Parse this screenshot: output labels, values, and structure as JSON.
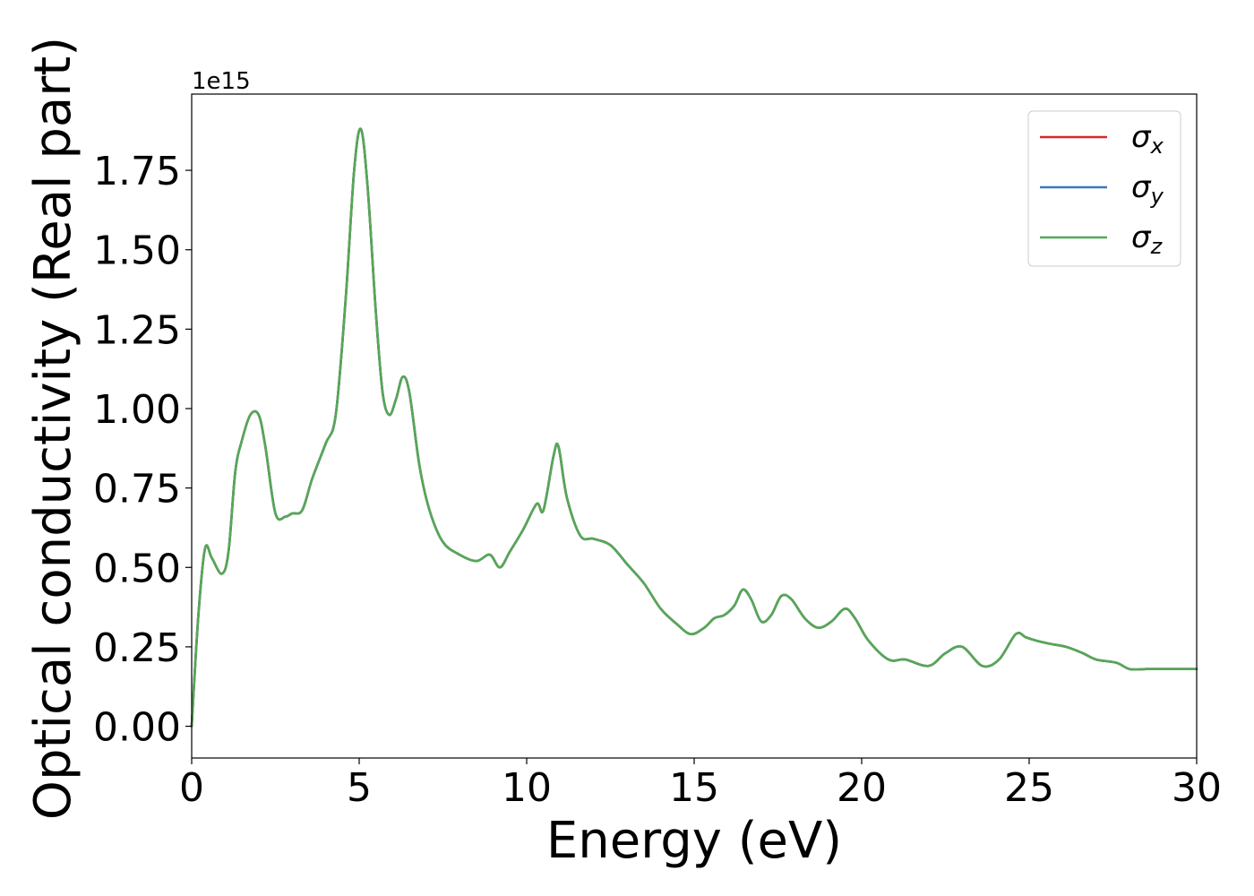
{
  "chart_data": {
    "type": "line",
    "xlabel": "Energy (eV)",
    "ylabel": "Optical conductivity (Real part)",
    "y_offset_label": "1e15",
    "xlim": [
      0,
      30
    ],
    "ylim": [
      -0.1,
      1.99
    ],
    "x_ticks": [
      0,
      5,
      10,
      15,
      20,
      25,
      30
    ],
    "x_tick_labels": [
      "0",
      "5",
      "10",
      "15",
      "20",
      "25",
      "30"
    ],
    "y_ticks": [
      0.0,
      0.25,
      0.5,
      0.75,
      1.0,
      1.25,
      1.5,
      1.75
    ],
    "y_tick_labels": [
      "0.00",
      "0.25",
      "0.50",
      "0.75",
      "1.00",
      "1.25",
      "1.50",
      "1.75"
    ],
    "grid": false,
    "legend_position": "top-right",
    "x": [
      0,
      0.2,
      0.4,
      0.6,
      0.9,
      1.1,
      1.3,
      1.5,
      1.75,
      2.0,
      2.2,
      2.5,
      2.8,
      3.0,
      3.3,
      3.6,
      4.0,
      4.3,
      4.6,
      4.85,
      5.05,
      5.25,
      5.5,
      5.7,
      5.9,
      6.1,
      6.3,
      6.5,
      6.8,
      7.1,
      7.5,
      8.0,
      8.5,
      8.9,
      9.2,
      9.5,
      9.9,
      10.3,
      10.5,
      10.8,
      10.95,
      11.2,
      11.6,
      12.0,
      12.5,
      13.0,
      13.5,
      14.0,
      14.5,
      14.9,
      15.3,
      15.6,
      15.9,
      16.2,
      16.45,
      16.7,
      17.0,
      17.3,
      17.6,
      17.9,
      18.3,
      18.7,
      19.1,
      19.5,
      19.8,
      20.2,
      20.8,
      21.3,
      22.0,
      22.5,
      23.0,
      23.6,
      24.1,
      24.6,
      24.9,
      25.2,
      25.6,
      26.1,
      26.6,
      27.0,
      27.6,
      28.0,
      28.5,
      29.0,
      29.5,
      30.0
    ],
    "series": [
      {
        "name": "σx",
        "color": "#d62728",
        "values": [
          0.0,
          0.35,
          0.56,
          0.53,
          0.48,
          0.55,
          0.8,
          0.9,
          0.98,
          0.98,
          0.88,
          0.67,
          0.66,
          0.67,
          0.68,
          0.78,
          0.89,
          0.98,
          1.35,
          1.75,
          1.88,
          1.7,
          1.3,
          1.05,
          0.98,
          1.03,
          1.1,
          1.05,
          0.82,
          0.68,
          0.58,
          0.54,
          0.52,
          0.54,
          0.5,
          0.55,
          0.62,
          0.7,
          0.68,
          0.85,
          0.88,
          0.72,
          0.6,
          0.59,
          0.57,
          0.51,
          0.45,
          0.37,
          0.32,
          0.29,
          0.31,
          0.34,
          0.35,
          0.38,
          0.43,
          0.4,
          0.33,
          0.35,
          0.41,
          0.4,
          0.34,
          0.31,
          0.33,
          0.37,
          0.34,
          0.27,
          0.21,
          0.21,
          0.19,
          0.23,
          0.25,
          0.19,
          0.21,
          0.29,
          0.28,
          0.27,
          0.26,
          0.25,
          0.23,
          0.21,
          0.2,
          0.18,
          0.18,
          0.18,
          0.18,
          0.18
        ]
      },
      {
        "name": "σy",
        "color": "#3a78b5",
        "values": [
          0.0,
          0.35,
          0.56,
          0.53,
          0.48,
          0.55,
          0.8,
          0.9,
          0.98,
          0.98,
          0.88,
          0.67,
          0.66,
          0.67,
          0.68,
          0.78,
          0.89,
          0.98,
          1.35,
          1.75,
          1.88,
          1.7,
          1.3,
          1.05,
          0.98,
          1.03,
          1.1,
          1.05,
          0.82,
          0.68,
          0.58,
          0.54,
          0.52,
          0.54,
          0.5,
          0.55,
          0.62,
          0.7,
          0.68,
          0.85,
          0.88,
          0.72,
          0.6,
          0.59,
          0.57,
          0.51,
          0.45,
          0.37,
          0.32,
          0.29,
          0.31,
          0.34,
          0.35,
          0.38,
          0.43,
          0.4,
          0.33,
          0.35,
          0.41,
          0.4,
          0.34,
          0.31,
          0.33,
          0.37,
          0.34,
          0.27,
          0.21,
          0.21,
          0.19,
          0.23,
          0.25,
          0.19,
          0.21,
          0.29,
          0.28,
          0.27,
          0.26,
          0.25,
          0.23,
          0.21,
          0.2,
          0.18,
          0.18,
          0.18,
          0.18,
          0.18
        ]
      },
      {
        "name": "σz",
        "color": "#55a855",
        "values": [
          0.0,
          0.35,
          0.56,
          0.53,
          0.48,
          0.55,
          0.8,
          0.9,
          0.98,
          0.98,
          0.88,
          0.67,
          0.66,
          0.67,
          0.68,
          0.78,
          0.89,
          0.98,
          1.35,
          1.75,
          1.88,
          1.7,
          1.3,
          1.05,
          0.98,
          1.03,
          1.1,
          1.05,
          0.82,
          0.68,
          0.58,
          0.54,
          0.52,
          0.54,
          0.5,
          0.55,
          0.62,
          0.7,
          0.68,
          0.85,
          0.88,
          0.72,
          0.6,
          0.59,
          0.57,
          0.51,
          0.45,
          0.37,
          0.32,
          0.29,
          0.31,
          0.34,
          0.35,
          0.38,
          0.43,
          0.4,
          0.33,
          0.35,
          0.41,
          0.4,
          0.34,
          0.31,
          0.33,
          0.37,
          0.34,
          0.27,
          0.21,
          0.21,
          0.19,
          0.23,
          0.25,
          0.19,
          0.21,
          0.29,
          0.28,
          0.27,
          0.26,
          0.25,
          0.23,
          0.21,
          0.2,
          0.18,
          0.18,
          0.18,
          0.18,
          0.18
        ]
      }
    ],
    "legend": [
      {
        "symbol": "σ",
        "subscript": "x",
        "color": "#d62728"
      },
      {
        "symbol": "σ",
        "subscript": "y",
        "color": "#3a78b5"
      },
      {
        "symbol": "σ",
        "subscript": "z",
        "color": "#55a855"
      }
    ]
  }
}
